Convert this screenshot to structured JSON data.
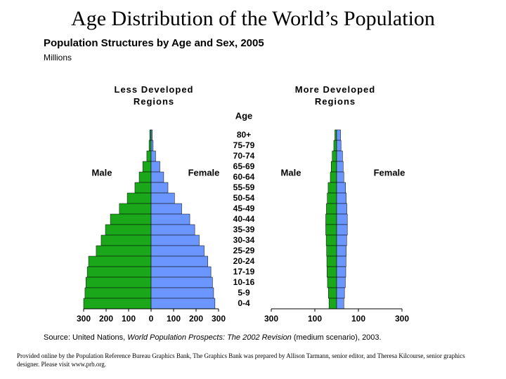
{
  "title": "Age Distribution of the World’s Population",
  "subtitle": "Population Structures by Age and Sex, 2005",
  "unit": "Millions",
  "source": [
    "Source: United Nations, ",
    "World Population Prospects: The 2002 Revision",
    " (medium scenario), 2003."
  ],
  "credit": "Provided online by the Population Reference Bureau Graphics Bank, The Graphics Bank was prepared by Allison Tarmann, senior editor, and Theresa Kilcourse, senior graphics designer. Please visit www.prb.org.",
  "chart_data": {
    "type": "bar",
    "orientation": "horizontal",
    "y_label": "Age",
    "categories": [
      "80+",
      "75-79",
      "70-74",
      "65-69",
      "60-64",
      "55-59",
      "50-54",
      "45-49",
      "40-44",
      "35-39",
      "30-34",
      "25-29",
      "20-24",
      "17-19",
      "10-16",
      "5-9",
      "0-4"
    ],
    "panels": [
      {
        "title": "Less Developed Regions",
        "xlim": [
          -300,
          300
        ],
        "xticks": [
          {
            "value": -300,
            "label": "300"
          },
          {
            "value": -200,
            "label": "200"
          },
          {
            "value": -100,
            "label": "100"
          },
          0,
          100,
          200,
          300
        ],
        "series": [
          {
            "name": "Male",
            "color": "#1aa81a",
            "values": [
              -6,
              -9,
              -19,
              -37,
              -53,
              -72,
              -106,
              -141,
              -181,
              -203,
              -222,
              -244,
              -278,
              -284,
              -290,
              -294,
              -300
            ]
          },
          {
            "name": "Female",
            "color": "#6b96ff",
            "values": [
              5,
              9,
              20,
              39,
              56,
              75,
              104,
              136,
              172,
              194,
              214,
              236,
              252,
              266,
              273,
              278,
              284
            ]
          }
        ]
      },
      {
        "title": "More Developed Regions",
        "xlim": [
          -300,
          300
        ],
        "xticks": [
          {
            "value": -300,
            "label": "300"
          },
          {
            "value": -100,
            "label": "100"
          },
          100,
          300
        ],
        "series": [
          {
            "name": "Male",
            "color": "#1aa81a",
            "values": [
              -8,
              -13,
              -20,
              -25,
              -29,
              -39,
              -43,
              -47,
              -50,
              -50,
              -48,
              -46,
              -45,
              -44,
              -42,
              -38,
              -35
            ]
          },
          {
            "name": "Female",
            "color": "#6b96ff",
            "values": [
              18,
              20,
              27,
              30,
              33,
              41,
              44,
              47,
              49,
              49,
              46,
              44,
              43,
              42,
              40,
              36,
              33
            ]
          }
        ]
      }
    ]
  }
}
